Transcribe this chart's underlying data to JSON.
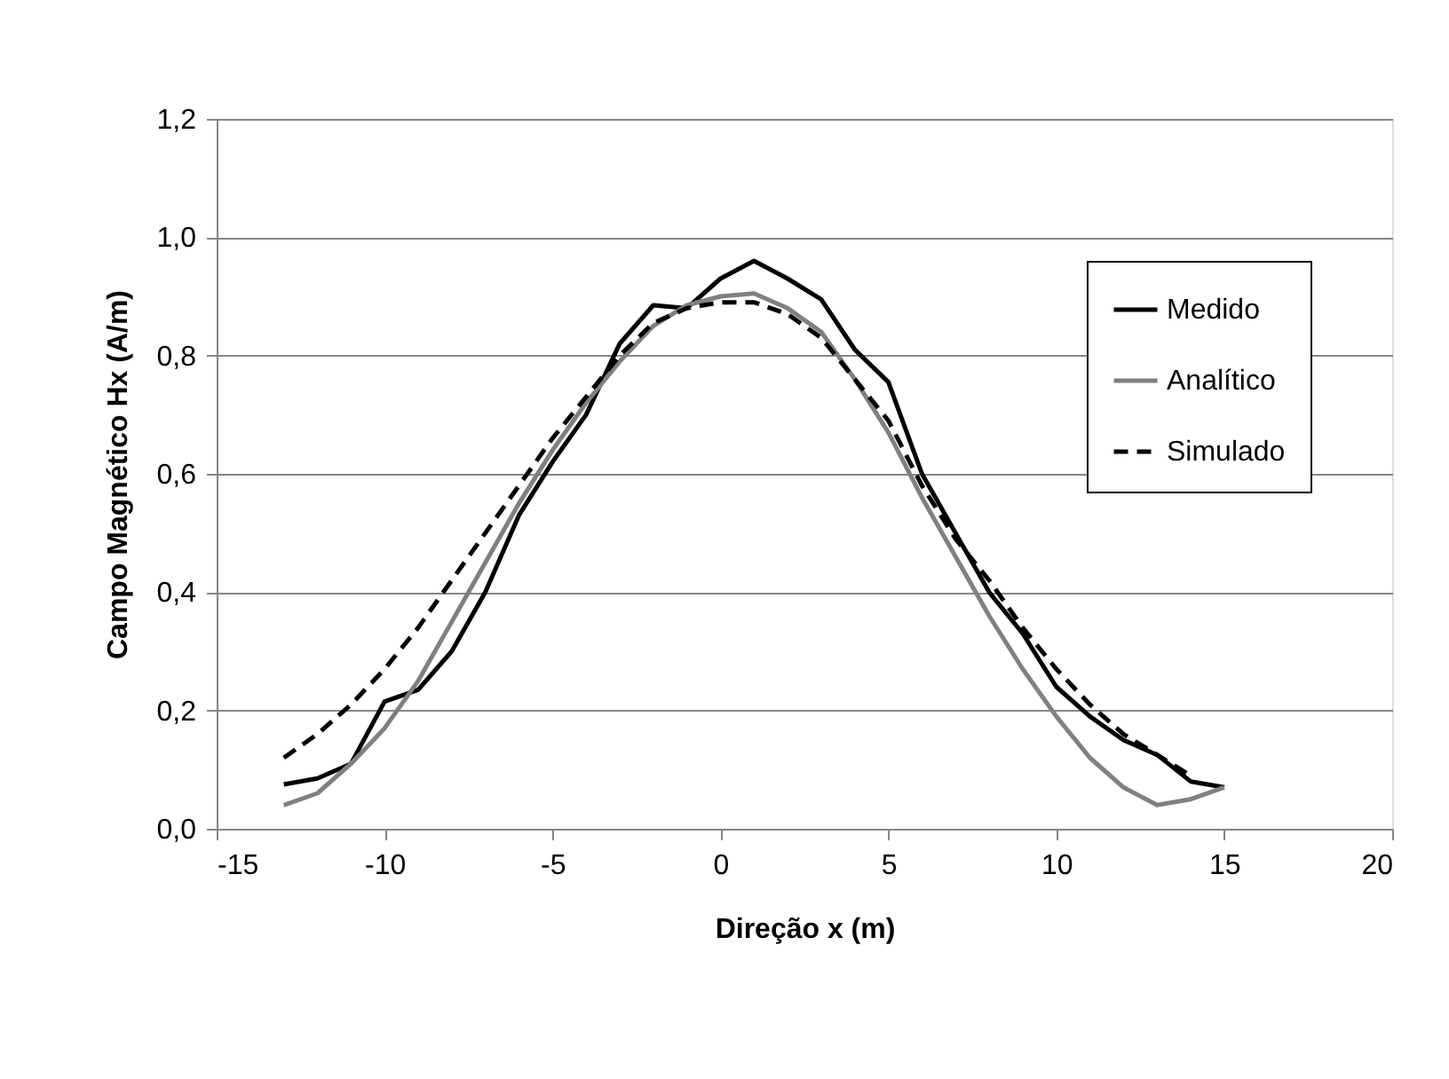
{
  "chart_data": {
    "type": "line",
    "xlabel": "Direção x (m)",
    "ylabel": "Campo Magnético Hx (A/m)",
    "x": [
      -13,
      -12,
      -11,
      -10,
      -9,
      -8,
      -7,
      -6,
      -5,
      -4,
      -3,
      -2,
      -1,
      0,
      1,
      2,
      3,
      4,
      5,
      6,
      7,
      8,
      9,
      10,
      11,
      12,
      13,
      14,
      15
    ],
    "series": [
      {
        "name": "Medido",
        "color": "#000000",
        "line_style": "solid",
        "values": [
          0.075,
          0.085,
          0.11,
          0.215,
          0.235,
          0.3,
          0.4,
          0.53,
          0.62,
          0.7,
          0.82,
          0.885,
          0.88,
          0.93,
          0.96,
          0.93,
          0.895,
          0.81,
          0.755,
          0.6,
          0.5,
          0.4,
          0.33,
          0.24,
          0.19,
          0.15,
          0.125,
          0.08,
          0.07
        ]
      },
      {
        "name": "Analítico",
        "color": "#808080",
        "line_style": "solid",
        "values": [
          0.04,
          0.06,
          0.11,
          0.17,
          0.25,
          0.35,
          0.45,
          0.55,
          0.64,
          0.72,
          0.79,
          0.85,
          0.885,
          0.9,
          0.905,
          0.88,
          0.84,
          0.76,
          0.67,
          0.56,
          0.46,
          0.36,
          0.27,
          0.19,
          0.12,
          0.07,
          0.04,
          0.05,
          0.07
        ]
      },
      {
        "name": "Simulado",
        "color": "#000000",
        "line_style": "dashed",
        "values": [
          0.12,
          0.16,
          0.21,
          0.27,
          0.34,
          0.42,
          0.5,
          0.58,
          0.66,
          0.73,
          0.8,
          0.855,
          0.88,
          0.89,
          0.89,
          0.87,
          0.83,
          0.76,
          0.69,
          0.58,
          0.49,
          0.42,
          0.34,
          0.27,
          0.21,
          0.16,
          0.125,
          0.09,
          null
        ]
      }
    ],
    "xlim": [
      -15,
      20
    ],
    "xticks": [
      -15,
      -10,
      -5,
      0,
      5,
      10,
      15,
      20
    ],
    "ylim": [
      0,
      1.2
    ],
    "yticks": [
      {
        "value": 0,
        "label": "0,0"
      },
      {
        "value": 0.2,
        "label": "0,2"
      },
      {
        "value": 0.4,
        "label": "0,4"
      },
      {
        "value": 0.6,
        "label": "0,6"
      },
      {
        "value": 0.8,
        "label": "0,8"
      },
      {
        "value": 1.0,
        "label": "1,0"
      },
      {
        "value": 1.2,
        "label": "1,2"
      }
    ],
    "grid": "y",
    "legend": "right",
    "marker": "none"
  }
}
